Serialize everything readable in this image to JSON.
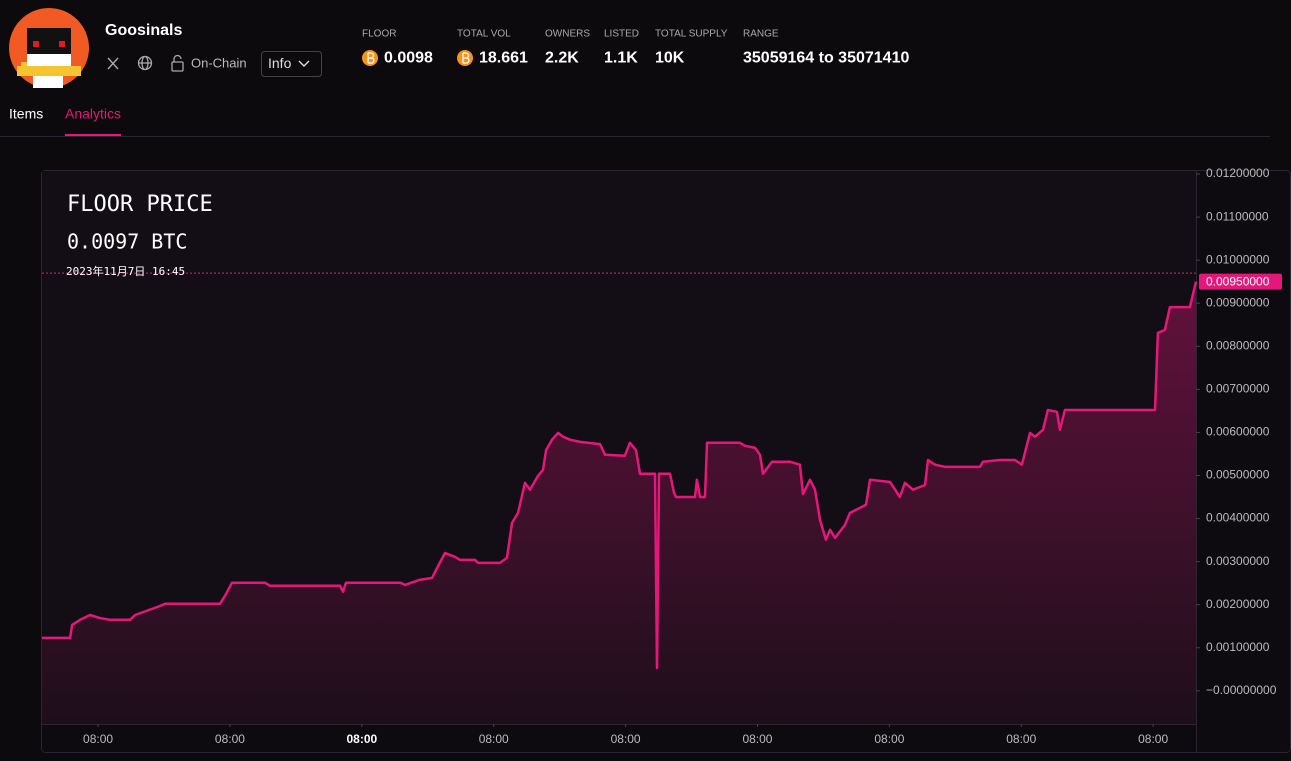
{
  "header": {
    "name": "Goosinals",
    "on_chain": "On-Chain",
    "info": "Info",
    "stats": [
      {
        "label": "FLOOR",
        "value": 0.0098,
        "coin": true
      },
      {
        "label": "TOTAL VOL",
        "value": 18.661,
        "coin": true
      },
      {
        "label": "OWNERS",
        "value": "2.2K",
        "coin": false
      },
      {
        "label": "LISTED",
        "value": "1.1K",
        "coin": false
      },
      {
        "label": "TOTAL SUPPLY",
        "value": "10K",
        "coin": false
      },
      {
        "label": "RANGE",
        "value": "35059164 to 35071410",
        "coin": false
      }
    ]
  },
  "tabs": [
    "Items",
    "Analytics"
  ],
  "active_tab": 1,
  "chart_data": {
    "type": "area",
    "title": "FLOOR PRICE",
    "value_text": "0.0097 BTC",
    "crosshair_label": "2023年11月7日 16:45",
    "crosshair": 0.0097,
    "color": "#e6177a",
    "grid": false,
    "last_price": {
      "value": 0.0095,
      "label": "0.00950000"
    },
    "xlim": [
      -0.425,
      8.325
    ],
    "ylim": [
      -0.00077,
      0.01207
    ],
    "xticks": [
      {
        "value": 0,
        "label": "08:00"
      },
      {
        "value": 1,
        "label": "08:00"
      },
      {
        "value": 2,
        "label": "08:00",
        "bold": true
      },
      {
        "value": 3,
        "label": "08:00"
      },
      {
        "value": 4,
        "label": "08:00"
      },
      {
        "value": 5,
        "label": "08:00"
      },
      {
        "value": 6,
        "label": "08:00"
      },
      {
        "value": 7,
        "label": "08:00"
      },
      {
        "value": 8,
        "label": "08:00"
      }
    ],
    "yticks": [
      {
        "value": 0.012,
        "label": "0.01200000"
      },
      {
        "value": 0.011,
        "label": "0.01100000"
      },
      {
        "value": 0.01,
        "label": "0.01000000"
      },
      {
        "value": 0.009,
        "label": "0.00900000"
      },
      {
        "value": 0.008,
        "label": "0.00800000"
      },
      {
        "value": 0.007,
        "label": "0.00700000"
      },
      {
        "value": 0.006,
        "label": "0.00600000"
      },
      {
        "value": 0.005,
        "label": "0.00500000"
      },
      {
        "value": 0.004,
        "label": "0.00400000"
      },
      {
        "value": 0.003,
        "label": "0.00300000"
      },
      {
        "value": 0.002,
        "label": "0.00200000"
      },
      {
        "value": 0.001,
        "label": "0.00100000"
      },
      {
        "value": 0,
        "label": "−0.00000000"
      }
    ],
    "x": [
      -0.425,
      -0.212,
      -0.197,
      -0.136,
      -0.061,
      0.015,
      0.091,
      0.243,
      0.281,
      0.47,
      0.508,
      0.925,
      0.963,
      1.016,
      1.266,
      1.304,
      1.835,
      1.857,
      1.88,
      2.29,
      2.328,
      2.441,
      2.532,
      2.563,
      2.631,
      2.707,
      2.745,
      2.858,
      2.881,
      3.048,
      3.101,
      3.139,
      3.184,
      3.237,
      3.275,
      3.336,
      3.374,
      3.397,
      3.442,
      3.488,
      3.525,
      3.579,
      3.654,
      3.806,
      3.844,
      3.995,
      4.033,
      4.079,
      4.109,
      4.223,
      4.238,
      4.253,
      4.337,
      4.367,
      4.382,
      4.526,
      4.541,
      4.564,
      4.602,
      4.617,
      4.867,
      4.905,
      4.981,
      5.019,
      5.042,
      5.11,
      5.246,
      5.322,
      5.345,
      5.398,
      5.436,
      5.474,
      5.519,
      5.55,
      5.588,
      5.663,
      5.701,
      5.777,
      5.823,
      5.853,
      6.005,
      6.08,
      6.118,
      6.179,
      6.27,
      6.293,
      6.346,
      6.422,
      6.687,
      6.71,
      6.839,
      6.952,
      7.005,
      7.066,
      7.104,
      7.165,
      7.202,
      7.271,
      7.293,
      7.331,
      8.014,
      8.036,
      8.089,
      8.127,
      8.279,
      8.325
    ],
    "values": [
      0.00123,
      0.00123,
      0.00153,
      0.00165,
      0.00176,
      0.00169,
      0.00165,
      0.00165,
      0.00176,
      0.00197,
      0.00202,
      0.00202,
      0.00221,
      0.00251,
      0.00251,
      0.00244,
      0.00244,
      0.0023,
      0.00251,
      0.00251,
      0.00246,
      0.00258,
      0.00262,
      0.00281,
      0.0032,
      0.00311,
      0.00304,
      0.00304,
      0.00297,
      0.00297,
      0.00309,
      0.0039,
      0.00413,
      0.00483,
      0.00467,
      0.00499,
      0.00513,
      0.00559,
      0.00583,
      0.00599,
      0.0059,
      0.00583,
      0.00578,
      0.00573,
      0.00548,
      0.00546,
      0.00576,
      0.00559,
      0.00504,
      0.00504,
      0.00053,
      0.00504,
      0.00504,
      0.0046,
      0.0045,
      0.0045,
      0.0049,
      0.0045,
      0.0045,
      0.00576,
      0.00576,
      0.00569,
      0.00564,
      0.00548,
      0.00504,
      0.00532,
      0.00532,
      0.00525,
      0.00457,
      0.0049,
      0.00467,
      0.00397,
      0.00351,
      0.00374,
      0.00355,
      0.00385,
      0.00413,
      0.00425,
      0.00432,
      0.0049,
      0.00485,
      0.0045,
      0.00483,
      0.00467,
      0.00478,
      0.00536,
      0.00525,
      0.0052,
      0.0052,
      0.00532,
      0.00536,
      0.00536,
      0.00525,
      0.00599,
      0.0059,
      0.00606,
      0.00652,
      0.00648,
      0.00606,
      0.00652,
      0.00652,
      0.00831,
      0.00838,
      0.00891,
      0.00891,
      0.0095
    ]
  }
}
